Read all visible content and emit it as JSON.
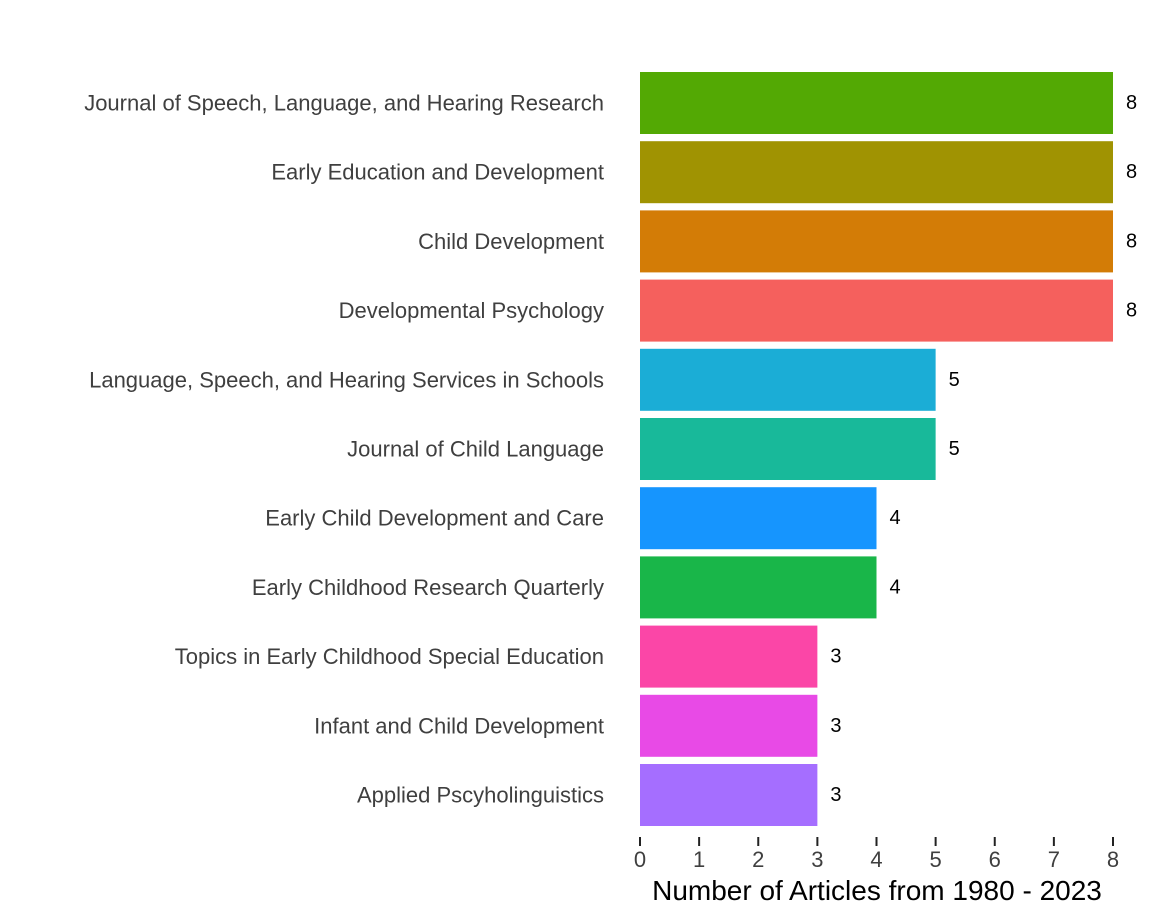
{
  "chart_data": {
    "type": "bar",
    "orientation": "horizontal",
    "title": "",
    "xlabel": "Number of Articles from 1980 - 2023",
    "ylabel": "",
    "xlim": [
      0,
      8
    ],
    "x_ticks": [
      "0",
      "1",
      "2",
      "3",
      "4",
      "5",
      "6",
      "7",
      "8"
    ],
    "grid": false,
    "legend": "none",
    "categories": [
      "Journal of Speech, Language, and Hearing Research",
      "Early Education and Development",
      "Child Development",
      "Developmental Psychology",
      "Language, Speech, and Hearing Services in Schools",
      "Journal of Child Language",
      "Early Child Development and Care",
      "Early Childhood Research Quarterly",
      "Topics in Early Childhood Special Education",
      "Infant and Child Development",
      "Applied Pscyholinguistics"
    ],
    "values": [
      8,
      8,
      8,
      8,
      5,
      5,
      4,
      4,
      3,
      3,
      3
    ],
    "value_labels": [
      "8",
      "8",
      "8",
      "8",
      "5",
      "5",
      "4",
      "4",
      "3",
      "3",
      "3"
    ],
    "colors": [
      "#53A904",
      "#A09302",
      "#D37C06",
      "#F5605D",
      "#1BADD6",
      "#18B99A",
      "#1695FE",
      "#19B649",
      "#FB46A7",
      "#E84AE6",
      "#A56EFF"
    ]
  }
}
